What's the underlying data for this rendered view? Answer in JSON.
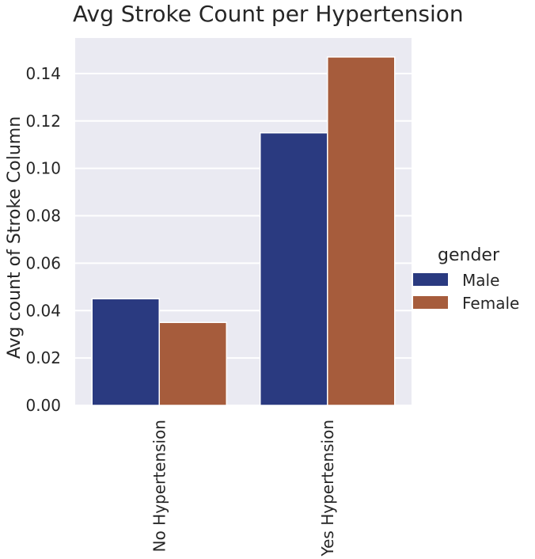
{
  "chart_data": {
    "type": "bar",
    "title": "Avg Stroke Count per Hypertension",
    "xlabel": "",
    "ylabel": "Avg count of Stroke Column",
    "categories": [
      "No Hypertension",
      "Yes Hypertension"
    ],
    "series": [
      {
        "name": "Male",
        "values": [
          0.045,
          0.115
        ],
        "color": "#2a3a80"
      },
      {
        "name": "Female",
        "values": [
          0.035,
          0.147
        ],
        "color": "#a65c3c"
      }
    ],
    "ylim": [
      0,
      0.155
    ],
    "yticks": [
      "0.00",
      "0.02",
      "0.04",
      "0.06",
      "0.08",
      "0.10",
      "0.12",
      "0.14"
    ],
    "ytick_values": [
      0,
      0.02,
      0.04,
      0.06,
      0.08,
      0.1,
      0.12,
      0.14
    ],
    "grid": true,
    "background": "#eaeaf2",
    "legend": {
      "title": "gender",
      "placement": "right"
    }
  }
}
